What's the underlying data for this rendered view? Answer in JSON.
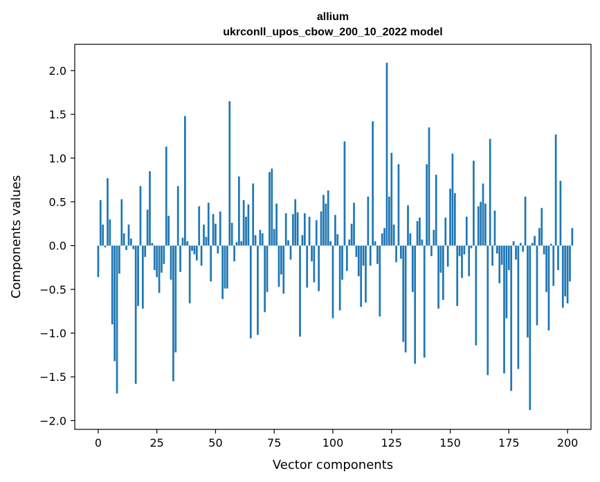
{
  "chart_data": {
    "type": "bar",
    "title": "allium",
    "subtitle": "ukrconll_upos_cbow_200_10_2022 model",
    "xlabel": "Vector components",
    "ylabel": "Components values",
    "xlim": [
      -10,
      210
    ],
    "ylim": [
      -2.1,
      2.3
    ],
    "xticks": [
      0,
      25,
      50,
      75,
      100,
      125,
      150,
      175,
      200
    ],
    "xtick_labels": [
      "0",
      "25",
      "50",
      "75",
      "100",
      "125",
      "150",
      "175",
      "200"
    ],
    "yticks": [
      -2.0,
      -1.5,
      -1.0,
      -0.5,
      0.0,
      0.5,
      1.0,
      1.5,
      2.0
    ],
    "ytick_labels": [
      "−2.0",
      "−1.5",
      "−1.0",
      "−0.5",
      "0.0",
      "0.5",
      "1.0",
      "1.5",
      "2.0"
    ],
    "grid": false,
    "bar_color": "#1f77b4",
    "values": [
      -0.36,
      0.52,
      0.24,
      -0.02,
      0.77,
      0.3,
      -0.9,
      -1.32,
      -1.69,
      -0.32,
      0.53,
      0.14,
      -0.05,
      0.24,
      0.08,
      -0.04,
      -1.58,
      -0.69,
      0.68,
      -0.72,
      -0.13,
      0.41,
      0.85,
      0.03,
      -0.28,
      -0.36,
      -0.54,
      -0.31,
      -0.21,
      1.13,
      0.34,
      -0.39,
      -1.55,
      -1.22,
      0.68,
      -0.3,
      0.09,
      1.48,
      0.05,
      -0.66,
      -0.06,
      -0.1,
      -0.17,
      0.45,
      -0.23,
      0.24,
      0.1,
      0.49,
      -0.41,
      0.36,
      0.25,
      -0.09,
      0.39,
      -0.61,
      -0.49,
      -0.49,
      1.65,
      0.26,
      -0.18,
      0.04,
      0.79,
      0.05,
      0.52,
      0.33,
      0.47,
      -1.06,
      0.71,
      0.12,
      -1.02,
      0.18,
      0.14,
      -0.76,
      -0.53,
      0.84,
      0.88,
      0.19,
      0.48,
      -0.47,
      -0.33,
      -0.55,
      0.37,
      0.06,
      -0.16,
      0.36,
      0.53,
      0.38,
      -1.04,
      0.12,
      0.37,
      -0.48,
      0.33,
      -0.18,
      -0.42,
      0.29,
      -0.52,
      0.39,
      0.58,
      0.48,
      0.63,
      0.05,
      -0.83,
      0.35,
      0.13,
      -0.74,
      -0.39,
      1.19,
      -0.29,
      0.07,
      0.25,
      0.49,
      -0.13,
      -0.35,
      -0.7,
      -0.23,
      -0.65,
      0.56,
      -0.23,
      1.42,
      0.05,
      -0.21,
      -0.81,
      0.14,
      0.2,
      2.09,
      0.56,
      1.06,
      0.24,
      -0.19,
      0.93,
      -0.15,
      -1.1,
      -1.22,
      0.46,
      0.14,
      -0.53,
      -1.35,
      0.28,
      0.32,
      0.07,
      -1.28,
      0.93,
      1.35,
      -0.12,
      0.18,
      0.81,
      -0.72,
      -0.31,
      -0.62,
      0.32,
      -0.24,
      0.65,
      1.05,
      0.6,
      -0.69,
      -0.12,
      -0.37,
      -0.1,
      0.33,
      -0.35,
      -0.03,
      0.97,
      -1.14,
      0.45,
      0.5,
      0.71,
      0.48,
      -1.48,
      1.22,
      -0.23,
      0.4,
      -0.09,
      -0.43,
      -0.22,
      -1.46,
      -0.83,
      -0.28,
      -1.66,
      0.05,
      -0.16,
      -1.41,
      0.03,
      -0.07,
      0.56,
      -1.05,
      -1.88,
      0.03,
      0.11,
      -0.91,
      0.2,
      0.43,
      -0.1,
      -0.53,
      -0.97,
      0.02,
      -0.46,
      1.27,
      -0.28,
      0.74,
      -0.71,
      -0.58,
      -0.66,
      -0.41,
      0.2
    ]
  }
}
